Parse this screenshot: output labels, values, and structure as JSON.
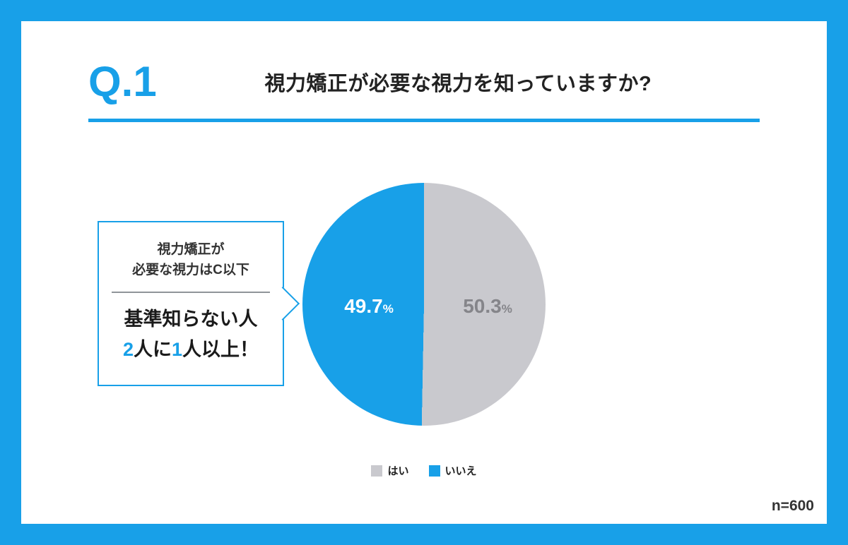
{
  "theme": {
    "accent": "#18A0E8"
  },
  "header": {
    "q_label": "Q.1",
    "title": "視力矯正が必要な視力を知っていますか?"
  },
  "callout": {
    "note_line1": "視力矯正が",
    "note_line2": "必要な視力はC以下",
    "headline_line1": "基準知らない人",
    "headline_num1": "2",
    "headline_mid": "人に",
    "headline_num2": "1",
    "headline_tail": "人以上！"
  },
  "chart_data": {
    "type": "pie",
    "title": "視力矯正が必要な視力を知っていますか?",
    "slices": [
      {
        "label": "はい",
        "value": 50.3,
        "color": "#C9C9CE",
        "label_color": "#85858A"
      },
      {
        "label": "いいえ",
        "value": 49.7,
        "color": "#18A0E8",
        "label_color": "#FFFFFF"
      }
    ],
    "unit": "%",
    "start_angle_deg": 0,
    "direction": "clockwise",
    "legend_position": "bottom",
    "sample_size_label": "n=600"
  }
}
